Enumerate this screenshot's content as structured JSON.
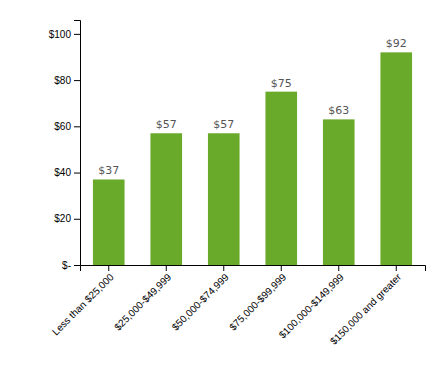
{
  "chart_data": {
    "type": "bar",
    "categories": [
      "Less than $25,000",
      "$25,000-$49,999",
      "$50,000-$74,999",
      "$75,000-$99,999",
      "$100,000-$149,999",
      "$150,000 and greater"
    ],
    "values": [
      37,
      57,
      57,
      75,
      63,
      92
    ],
    "value_labels": [
      "$37",
      "$57",
      "$57",
      "$75",
      "$63",
      "$92"
    ],
    "data_labels": true,
    "color": "#6aaa2a",
    "ylim": [
      0,
      106
    ],
    "yticks": [
      {
        "value": 0,
        "label": "$-"
      },
      {
        "value": 20,
        "label": "$20"
      },
      {
        "value": 40,
        "label": "$40"
      },
      {
        "value": 60,
        "label": "$60"
      },
      {
        "value": 80,
        "label": "$80"
      },
      {
        "value": 100,
        "label": "$100"
      }
    ],
    "grid": false
  }
}
